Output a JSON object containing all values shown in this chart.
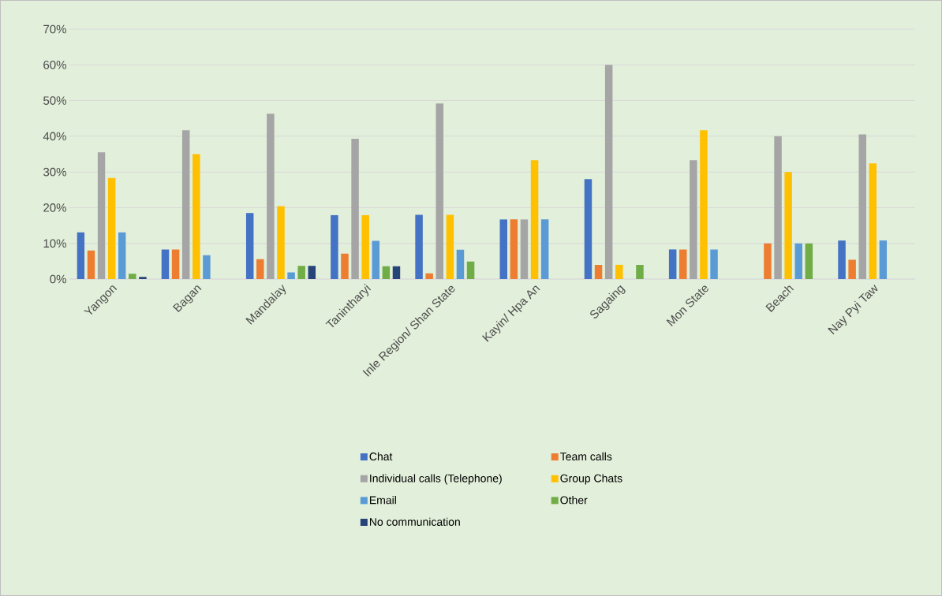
{
  "chart_data": {
    "type": "bar",
    "categories": [
      "Yangon",
      "Bagan",
      "Mandalay",
      "Tanintharyi",
      "Inle Region/ Shan State",
      "Kayin/ Hpa An",
      "Sagaing",
      "Mon State",
      "Beach",
      "Nay Pyi Taw"
    ],
    "series": [
      {
        "name": "Chat",
        "color": "#4472c4",
        "values": [
          13.1,
          8.3,
          18.5,
          17.9,
          18.0,
          16.7,
          28.0,
          8.3,
          null,
          10.8
        ]
      },
      {
        "name": "Team calls",
        "color": "#ed7d31",
        "values": [
          8.0,
          8.3,
          5.6,
          7.1,
          1.6,
          16.7,
          4.0,
          8.3,
          10.0,
          5.4
        ]
      },
      {
        "name": "Individual calls (Telephone)",
        "color": "#a5a5a5",
        "values": [
          35.5,
          41.7,
          46.3,
          39.3,
          49.2,
          16.7,
          60.0,
          33.3,
          40.0,
          40.5
        ]
      },
      {
        "name": "Group Chats",
        "color": "#ffc000",
        "values": [
          28.3,
          35.0,
          20.4,
          17.9,
          18.0,
          33.3,
          4.0,
          41.7,
          30.0,
          32.4
        ]
      },
      {
        "name": "Email",
        "color": "#5b9bd5",
        "values": [
          13.1,
          6.7,
          1.9,
          10.7,
          8.2,
          16.7,
          null,
          8.3,
          10.0,
          10.8
        ]
      },
      {
        "name": "Other",
        "color": "#70ad47",
        "values": [
          1.5,
          null,
          3.7,
          3.6,
          4.9,
          null,
          4.0,
          null,
          10.0,
          null
        ]
      },
      {
        "name": "No communication",
        "color": "#264478",
        "values": [
          0.6,
          null,
          3.7,
          3.6,
          null,
          null,
          null,
          null,
          null,
          null
        ]
      }
    ],
    "ylim": [
      0,
      70
    ],
    "yticks": [
      {
        "value": 0,
        "label": "0%"
      },
      {
        "value": 10,
        "label": "10%"
      },
      {
        "value": 20,
        "label": "20%"
      },
      {
        "value": 30,
        "label": "30%"
      },
      {
        "value": 40,
        "label": "40%"
      },
      {
        "value": 50,
        "label": "50%"
      },
      {
        "value": 60,
        "label": "60%"
      },
      {
        "value": 70,
        "label": "70%"
      }
    ],
    "grid": "y",
    "legend": "bottom"
  }
}
